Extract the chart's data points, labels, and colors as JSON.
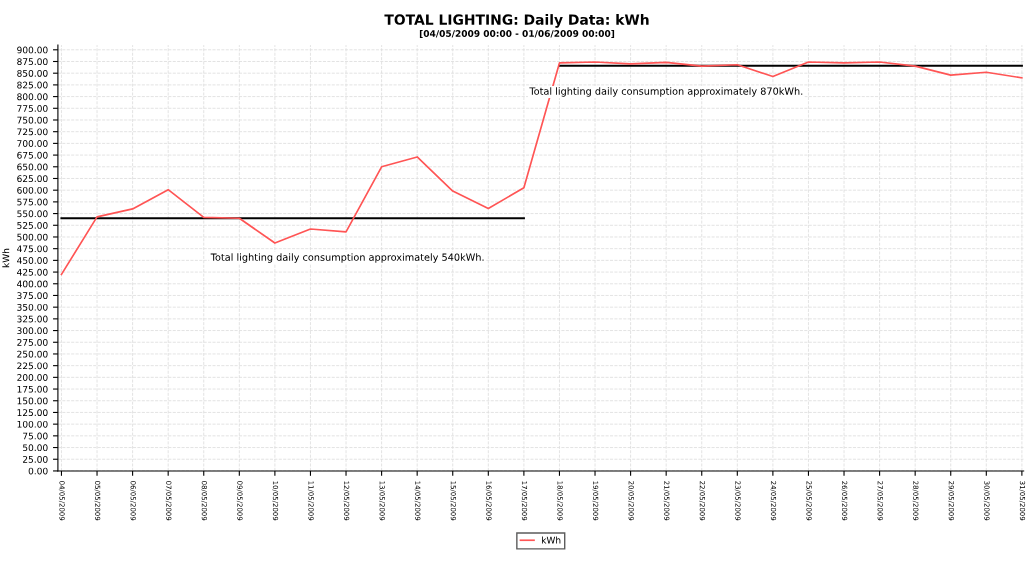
{
  "chart_data": {
    "type": "line",
    "title": "TOTAL LIGHTING: Daily Data: kWh",
    "subtitle": "[04/05/2009 00:00 - 01/06/2009 00:00]",
    "ylabel": "kWh",
    "categories": [
      "04/05/2009",
      "05/05/2009",
      "06/05/2009",
      "07/05/2009",
      "08/05/2009",
      "09/05/2009",
      "10/05/2009",
      "11/05/2009",
      "12/05/2009",
      "13/05/2009",
      "14/05/2009",
      "15/05/2009",
      "16/05/2009",
      "17/05/2009",
      "18/05/2009",
      "19/05/2009",
      "20/05/2009",
      "21/05/2009",
      "22/05/2009",
      "23/05/2009",
      "24/05/2009",
      "25/05/2009",
      "26/05/2009",
      "27/05/2009",
      "28/05/2009",
      "29/05/2009",
      "30/05/2009",
      "31/05/2009"
    ],
    "series": [
      {
        "name": "kWh",
        "color": "#ff5555",
        "values": [
          420,
          543,
          560,
          601,
          542,
          540,
          487,
          517,
          511,
          650,
          671,
          598,
          561,
          605,
          872,
          874,
          870,
          873,
          865,
          868,
          843,
          874,
          872,
          874,
          865,
          846,
          852,
          840
        ]
      },
      {
        "color": "#000000",
        "values": [
          540,
          540,
          540,
          540,
          540,
          540,
          540,
          540,
          540,
          540,
          540,
          540,
          540,
          540,
          null,
          null,
          null,
          null,
          null,
          null,
          null,
          null,
          null,
          null,
          null,
          null,
          null,
          null
        ]
      },
      {
        "color": "#000000",
        "values": [
          null,
          null,
          null,
          null,
          null,
          null,
          null,
          null,
          null,
          null,
          null,
          null,
          null,
          null,
          866,
          866,
          866,
          866,
          866,
          866,
          866,
          866,
          866,
          866,
          866,
          866,
          866,
          866
        ]
      }
    ],
    "annotations": [
      "Total lighting daily consumption approximately 540kWh.",
      "Total lighting daily consumption approximately 870kWh."
    ],
    "ylim": [
      0,
      910
    ],
    "yticks": [
      {
        "value": 0,
        "label": "0.00"
      },
      {
        "value": 25,
        "label": "25.00"
      },
      {
        "value": 50,
        "label": "50.00"
      },
      {
        "value": 75,
        "label": "75.00"
      },
      {
        "value": 100,
        "label": "100.00"
      },
      {
        "value": 125,
        "label": "125.00"
      },
      {
        "value": 150,
        "label": "150.00"
      },
      {
        "value": 175,
        "label": "175.00"
      },
      {
        "value": 200,
        "label": "200.00"
      },
      {
        "value": 225,
        "label": "225.00"
      },
      {
        "value": 250,
        "label": "250.00"
      },
      {
        "value": 275,
        "label": "275.00"
      },
      {
        "value": 300,
        "label": "300.00"
      },
      {
        "value": 325,
        "label": "325.00"
      },
      {
        "value": 350,
        "label": "350.00"
      },
      {
        "value": 375,
        "label": "375.00"
      },
      {
        "value": 400,
        "label": "400.00"
      },
      {
        "value": 425,
        "label": "425.00"
      },
      {
        "value": 450,
        "label": "450.00"
      },
      {
        "value": 475,
        "label": "475.00"
      },
      {
        "value": 500,
        "label": "500.00"
      },
      {
        "value": 525,
        "label": "525.00"
      },
      {
        "value": 550,
        "label": "550.00"
      },
      {
        "value": 575,
        "label": "575.00"
      },
      {
        "value": 600,
        "label": "600.00"
      },
      {
        "value": 625,
        "label": "625.00"
      },
      {
        "value": 650,
        "label": "650.00"
      },
      {
        "value": 675,
        "label": "675.00"
      },
      {
        "value": 700,
        "label": "700.00"
      },
      {
        "value": 725,
        "label": "725.00"
      },
      {
        "value": 750,
        "label": "750.00"
      },
      {
        "value": 775,
        "label": "775.00"
      },
      {
        "value": 800,
        "label": "800.00"
      },
      {
        "value": 825,
        "label": "825.00"
      },
      {
        "value": 850,
        "label": "850.00"
      },
      {
        "value": 875,
        "label": "875.00"
      },
      {
        "value": 900,
        "label": "900.00"
      }
    ],
    "grid": true,
    "legend": "bottom",
    "marker": "none",
    "line_style": "solid"
  }
}
